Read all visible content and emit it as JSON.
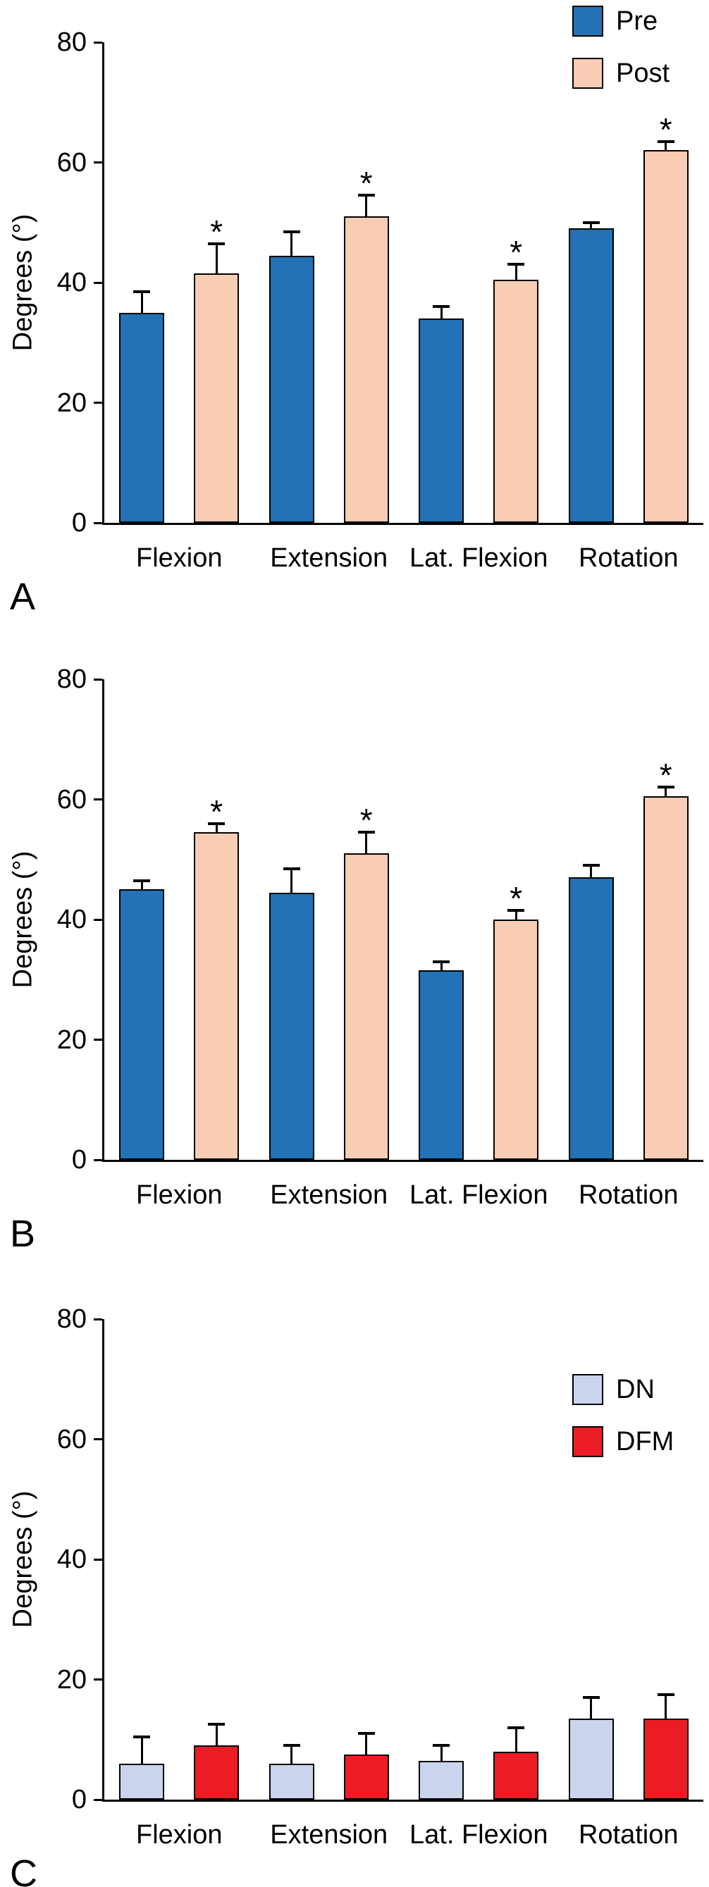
{
  "figure": {
    "background": "#FFFFFF",
    "axis_color": "#000000",
    "panel_labels": [
      "A",
      "B",
      "C"
    ]
  },
  "chart_data": [
    {
      "type": "bar",
      "panel_label": "A",
      "title": "",
      "xlabel": "",
      "ylabel": "Degrees (°)",
      "ylim": [
        0,
        80
      ],
      "yticks": [
        0,
        20,
        40,
        60,
        80
      ],
      "grid": false,
      "legend_position": "top-right",
      "sig_marker": "*",
      "categories": [
        "Flexion",
        "Extension",
        "Lat. Flexion",
        "Rotation"
      ],
      "series": [
        {
          "name": "Pre",
          "color": "#2272B5",
          "values": [
            35,
            44.5,
            34,
            49
          ],
          "errors": [
            3.5,
            4,
            2,
            1
          ],
          "significant": [
            false,
            false,
            false,
            false
          ]
        },
        {
          "name": "Post",
          "color": "#F9CDB3",
          "values": [
            41.5,
            51,
            40.5,
            62
          ],
          "errors": [
            5,
            3.5,
            2.5,
            1.5
          ],
          "significant": [
            true,
            true,
            true,
            true
          ]
        }
      ]
    },
    {
      "type": "bar",
      "panel_label": "B",
      "title": "",
      "xlabel": "",
      "ylabel": "Degrees (°)",
      "ylim": [
        0,
        80
      ],
      "yticks": [
        0,
        20,
        40,
        60,
        80
      ],
      "grid": false,
      "legend_position": "none",
      "sig_marker": "*",
      "categories": [
        "Flexion",
        "Extension",
        "Lat. Flexion",
        "Rotation"
      ],
      "series": [
        {
          "name": "Pre",
          "color": "#2272B5",
          "values": [
            45,
            44.5,
            31.5,
            47
          ],
          "errors": [
            1.5,
            4,
            1.5,
            2
          ],
          "significant": [
            false,
            false,
            false,
            false
          ]
        },
        {
          "name": "Post",
          "color": "#F9CDB3",
          "values": [
            54.5,
            51,
            40,
            60.5
          ],
          "errors": [
            1.5,
            3.5,
            1.5,
            1.5
          ],
          "significant": [
            true,
            true,
            true,
            true
          ]
        }
      ]
    },
    {
      "type": "bar",
      "panel_label": "C",
      "title": "",
      "xlabel": "",
      "ylabel": "Degrees (°)",
      "ylim": [
        0,
        80
      ],
      "yticks": [
        0,
        20,
        40,
        60,
        80
      ],
      "grid": false,
      "legend_position": "inside-right",
      "sig_marker": "*",
      "categories": [
        "Flexion",
        "Extension",
        "Lat. Flexion",
        "Rotation"
      ],
      "series": [
        {
          "name": "DN",
          "color": "#CAD4ED",
          "values": [
            6,
            6,
            6.5,
            13.5
          ],
          "errors": [
            4.5,
            3,
            2.5,
            3.5
          ],
          "significant": [
            false,
            false,
            false,
            false
          ]
        },
        {
          "name": "DFM",
          "color": "#EC1C24",
          "values": [
            9,
            7.5,
            8,
            13.5
          ],
          "errors": [
            3.5,
            3.5,
            4,
            4
          ],
          "significant": [
            false,
            false,
            false,
            false
          ]
        }
      ]
    }
  ]
}
